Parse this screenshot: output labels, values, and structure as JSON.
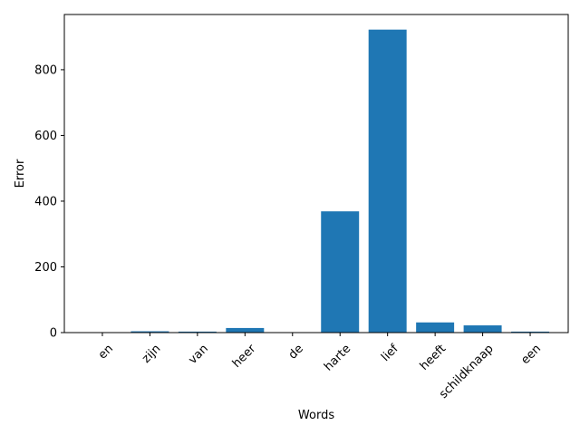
{
  "chart_data": {
    "type": "bar",
    "categories": [
      "en",
      "zijn",
      "van",
      "heer",
      "de",
      "harte",
      "lief",
      "heeft",
      "schildknaap",
      "een"
    ],
    "values": [
      1,
      4,
      3,
      14,
      1,
      369,
      922,
      31,
      22,
      3
    ],
    "xlabel": "Words",
    "ylabel": "Error",
    "ylim": [
      0,
      968
    ],
    "yticks": [
      0,
      200,
      400,
      600,
      800
    ],
    "bar_color": "#1f77b4",
    "grid": false,
    "x_tick_rotation": 45
  }
}
